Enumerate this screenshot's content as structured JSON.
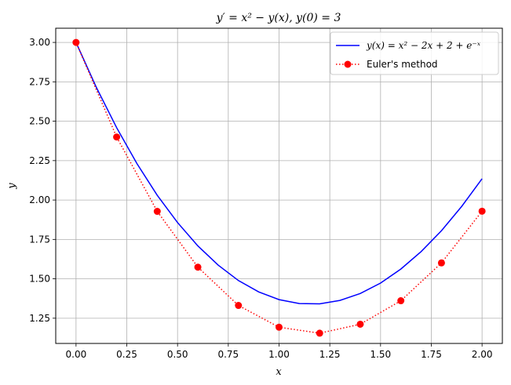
{
  "chart_data": {
    "type": "line",
    "title": "y′ = x² − y(x), y(0) = 3",
    "xlabel": "x",
    "ylabel": "y",
    "xlim": [
      -0.1,
      2.1
    ],
    "ylim": [
      1.09,
      3.09
    ],
    "x_ticks": [
      "0.00",
      "0.25",
      "0.50",
      "0.75",
      "1.00",
      "1.25",
      "1.50",
      "1.75",
      "2.00"
    ],
    "y_ticks": [
      "1.25",
      "1.50",
      "1.75",
      "2.00",
      "2.25",
      "2.50",
      "2.75",
      "3.00"
    ],
    "grid": true,
    "legend_position": "top-right",
    "series": [
      {
        "name": "y(x) = x² − 2x + 2 + e⁻ˣ",
        "style": "solid line",
        "color": "#0000ff",
        "x": [
          0.0,
          0.1,
          0.2,
          0.3,
          0.4,
          0.5,
          0.6,
          0.7,
          0.8,
          0.9,
          1.0,
          1.1,
          1.2,
          1.3,
          1.4,
          1.5,
          1.6,
          1.7,
          1.8,
          1.9,
          2.0
        ],
        "y": [
          3.0,
          2.715,
          2.459,
          2.231,
          2.03,
          1.857,
          1.709,
          1.587,
          1.489,
          1.417,
          1.368,
          1.343,
          1.341,
          1.363,
          1.407,
          1.473,
          1.562,
          1.673,
          1.805,
          1.96,
          2.135
        ]
      },
      {
        "name": "Euler's method",
        "style": "dotted line with circle markers",
        "color": "#ff0000",
        "x": [
          0.0,
          0.2,
          0.4,
          0.6,
          0.8,
          1.0,
          1.2,
          1.4,
          1.6,
          1.8,
          2.0
        ],
        "y": [
          3.0,
          2.4,
          1.928,
          1.574,
          1.331,
          1.193,
          1.155,
          1.212,
          1.361,
          1.601,
          1.929
        ]
      }
    ]
  }
}
